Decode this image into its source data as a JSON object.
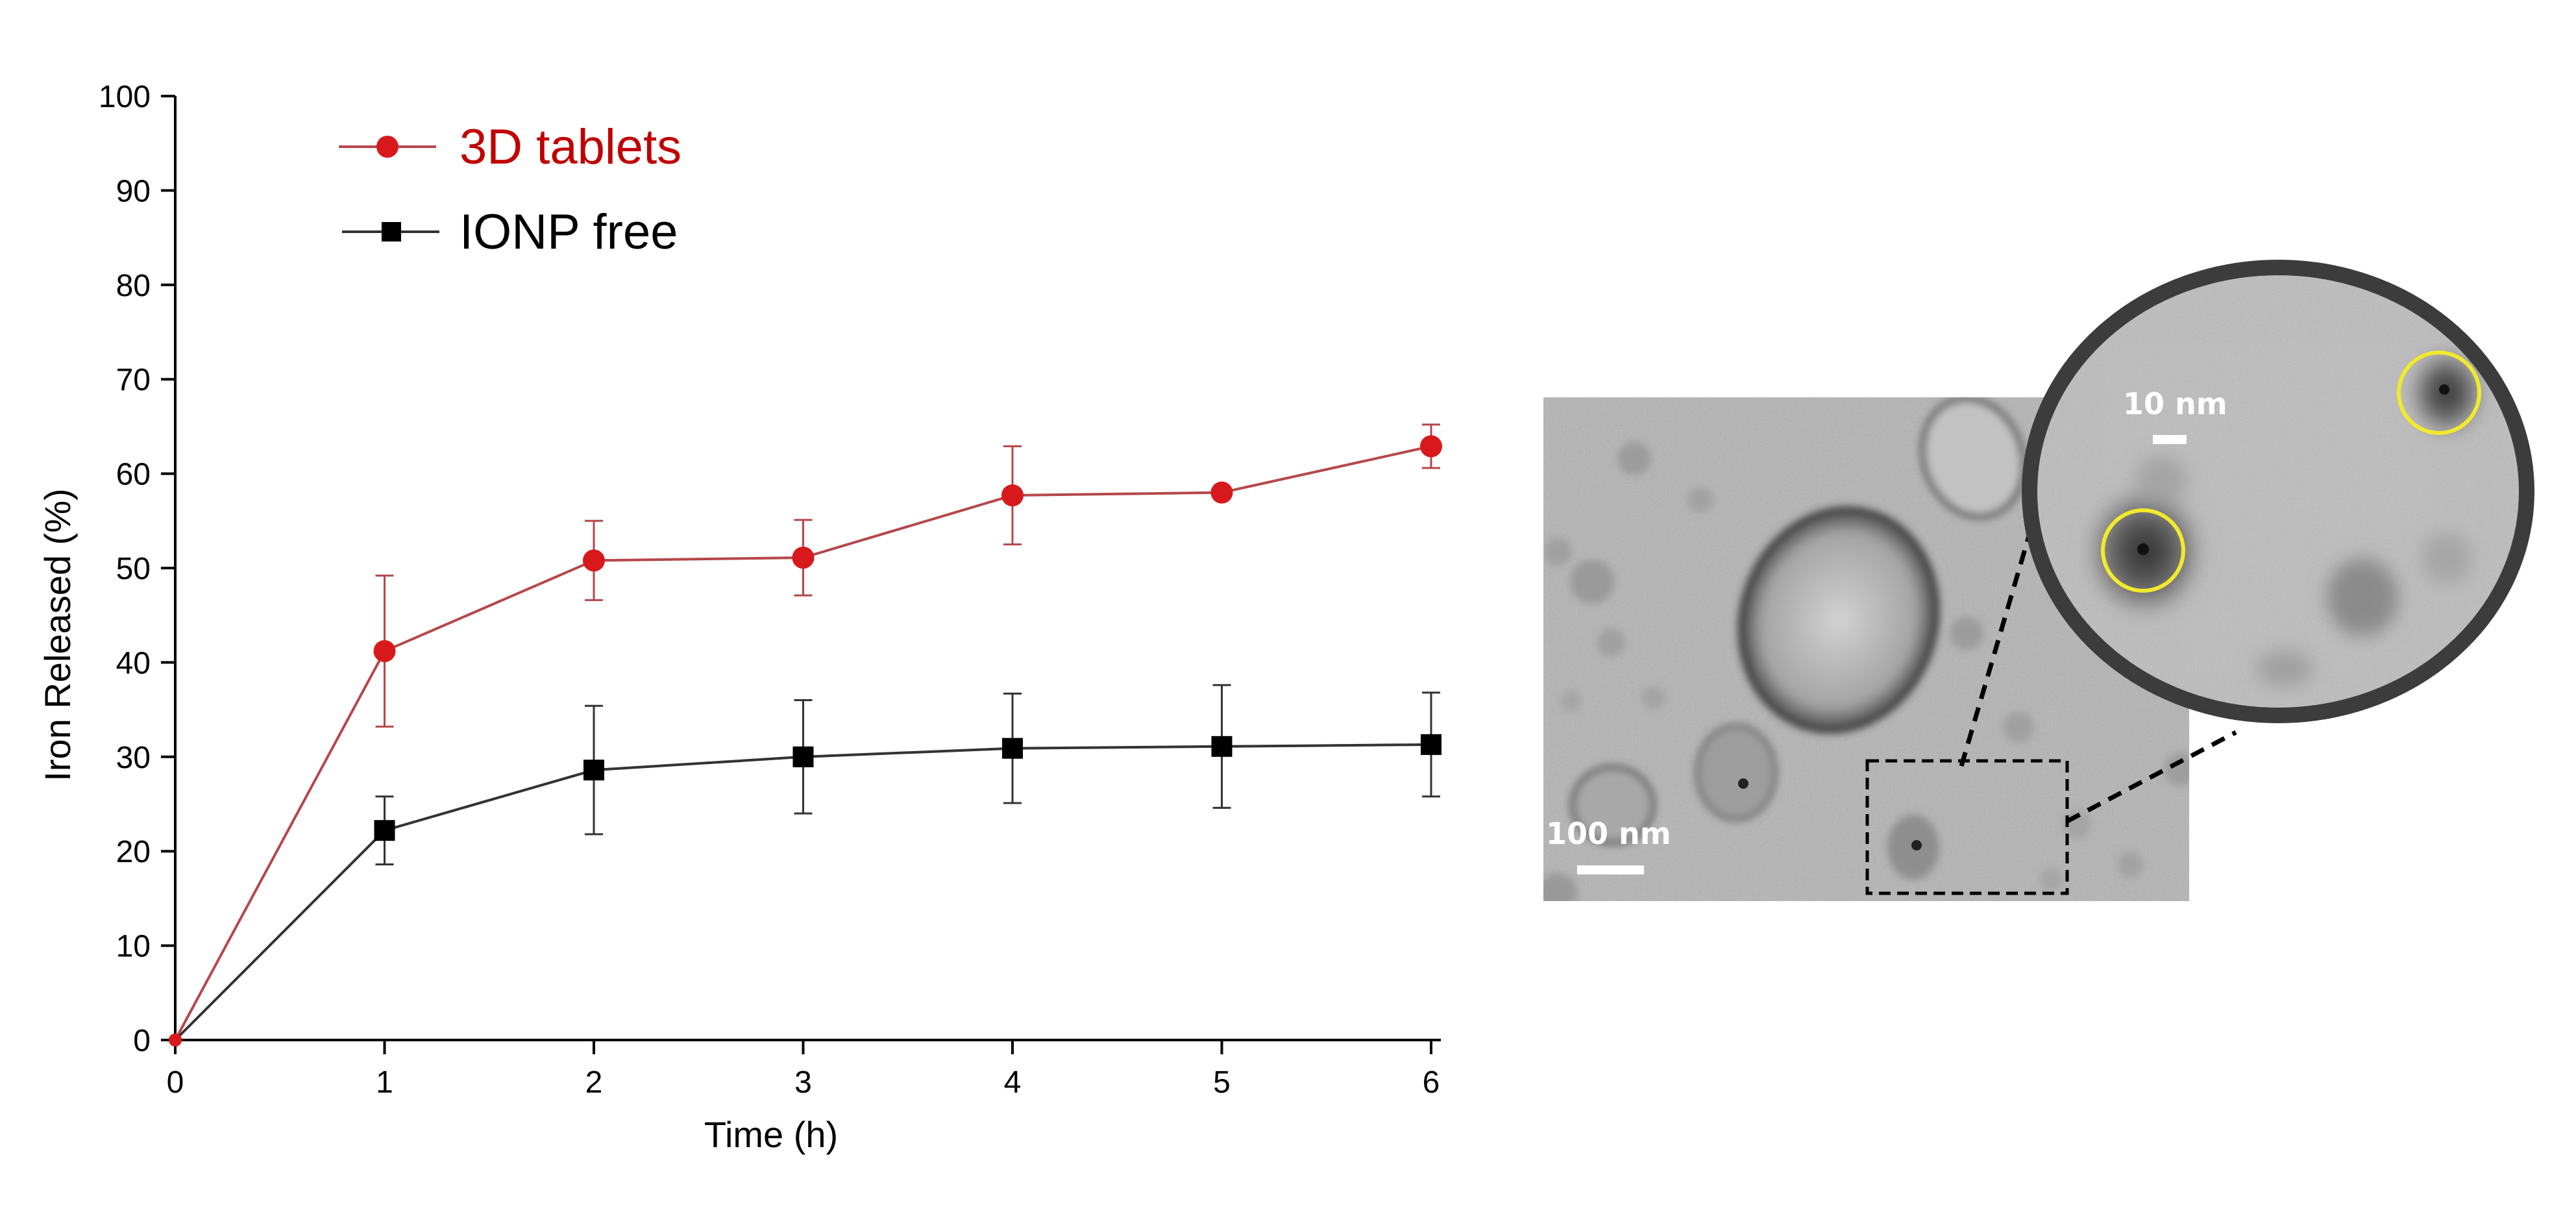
{
  "chart_data": {
    "type": "line",
    "x": [
      0,
      1,
      2,
      3,
      4,
      5,
      6
    ],
    "xlabel": "Time (h)",
    "ylabel": "Iron Released (%)",
    "xlim": [
      0,
      6
    ],
    "ylim": [
      0,
      100
    ],
    "xticks": [
      "0",
      "1",
      "2",
      "3",
      "4",
      "5",
      "6"
    ],
    "yticks": [
      "0",
      "10",
      "20",
      "30",
      "40",
      "50",
      "60",
      "70",
      "80",
      "90",
      "100"
    ],
    "grid": false,
    "legend_position": "top-left",
    "series": [
      {
        "name": "3D tablets",
        "color": "#d7191c",
        "line_color": "#b5474a",
        "marker": "circle",
        "values": [
          0,
          41.2,
          50.8,
          51.1,
          57.7,
          58.0,
          62.9
        ],
        "error": [
          0,
          8.0,
          4.2,
          4.0,
          5.2,
          0.5,
          2.3
        ]
      },
      {
        "name": "IONP free",
        "color": "#000000",
        "line_color": "#333333",
        "marker": "square",
        "values": [
          0,
          22.2,
          28.6,
          30.0,
          30.9,
          31.1,
          31.3
        ],
        "error": [
          0,
          3.6,
          6.8,
          6.0,
          5.8,
          6.5,
          5.5
        ]
      }
    ]
  },
  "micrograph": {
    "scale_bar_main": "100 nm",
    "scale_bar_inset": "10 nm"
  }
}
